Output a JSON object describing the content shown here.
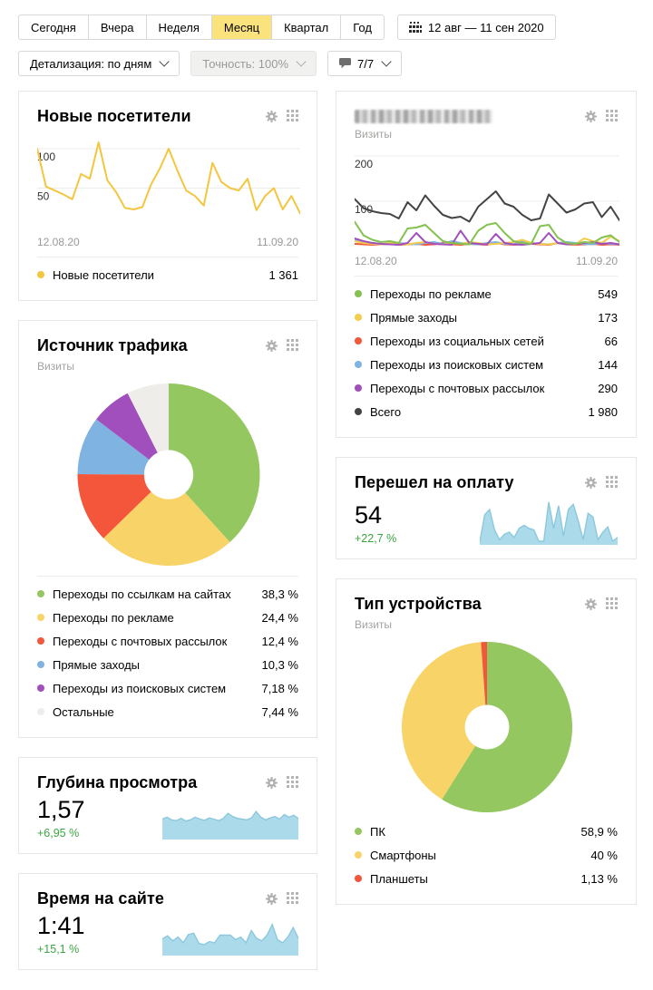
{
  "toolbar": {
    "period_tabs": [
      {
        "label": "Сегодня",
        "active": false
      },
      {
        "label": "Вчера",
        "active": false
      },
      {
        "label": "Неделя",
        "active": false
      },
      {
        "label": "Месяц",
        "active": true
      },
      {
        "label": "Квартал",
        "active": false
      },
      {
        "label": "Год",
        "active": false
      }
    ],
    "date_range": "12 авг — 11 сен 2020",
    "detail_button": "Детализация: по дням",
    "accuracy_button": "Точность: 100%",
    "comments_button": "7/7"
  },
  "colors": {
    "selected_tab_bg": "#fae27d",
    "positive_delta": "#3aa53f",
    "spark_fill": "#abdaeb",
    "spark_stroke": "#8cc8dd"
  },
  "cards": {
    "new_visitors": {
      "title": "Новые посетители",
      "legend": [
        {
          "label": "Новые посетители",
          "value": "1 361",
          "color": "#f4c63f"
        }
      ]
    },
    "site_traffic": {
      "title_blurred": true,
      "subtitle": "Визиты",
      "legend": [
        {
          "label": "Переходы по рекламе",
          "value": "549",
          "color": "#84c14f"
        },
        {
          "label": "Прямые заходы",
          "value": "173",
          "color": "#f2cd4e"
        },
        {
          "label": "Переходы из социальных сетей",
          "value": "66",
          "color": "#f4563c"
        },
        {
          "label": "Переходы из поисковых систем",
          "value": "144",
          "color": "#7fb3e2"
        },
        {
          "label": "Переходы с почтовых рассылок",
          "value": "290",
          "color": "#a14fbc"
        },
        {
          "label": "Всего",
          "value": "1 980",
          "color": "#444444"
        }
      ]
    },
    "traffic_source": {
      "title": "Источник трафика",
      "subtitle": "Визиты",
      "legend": [
        {
          "label": "Переходы по ссылкам на сайтах",
          "value": "38,3 %",
          "color": "#94c75f"
        },
        {
          "label": "Переходы по рекламе",
          "value": "24,4 %",
          "color": "#f8d468"
        },
        {
          "label": "Переходы с почтовых рассылок",
          "value": "12,4 %",
          "color": "#f4563c"
        },
        {
          "label": "Прямые заходы",
          "value": "10,3 %",
          "color": "#7fb3e2"
        },
        {
          "label": "Переходы из поисковых систем",
          "value": "7,18 %",
          "color": "#a14fbc"
        },
        {
          "label": "Остальные",
          "value": "7,44 %",
          "color": "#eeede9"
        }
      ]
    },
    "payment": {
      "title": "Перешел на оплату",
      "value": "54",
      "delta": "+22,7 %"
    },
    "depth": {
      "title": "Глубина просмотра",
      "value": "1,57",
      "delta": "+6,95 %"
    },
    "time_on_site": {
      "title": "Время на сайте",
      "value": "1:41",
      "delta": "+15,1 %"
    },
    "devices": {
      "title": "Тип устройства",
      "subtitle": "Визиты",
      "legend": [
        {
          "label": "ПК",
          "value": "58,9 %",
          "color": "#94c75f"
        },
        {
          "label": "Смартфоны",
          "value": "40 %",
          "color": "#f8d468"
        },
        {
          "label": "Планшеты",
          "value": "1,13 %",
          "color": "#f4563c"
        }
      ]
    }
  },
  "chart_data": [
    {
      "id": "new_visitors",
      "type": "line",
      "title": "Новые посетители",
      "x_labels": [
        "12.08.20",
        "11.09.20"
      ],
      "ylim": [
        0,
        115
      ],
      "yticks": [
        50,
        100
      ],
      "grid": true,
      "series": [
        {
          "name": "Новые посетители",
          "color": "#f4c63f",
          "values": [
            100,
            52,
            47,
            42,
            36,
            68,
            62,
            108,
            60,
            45,
            25,
            23,
            26,
            55,
            75,
            100,
            72,
            47,
            40,
            28,
            82,
            58,
            50,
            47,
            62,
            22,
            40,
            50,
            23,
            40,
            18
          ]
        }
      ],
      "total": "1 361"
    },
    {
      "id": "site_traffic",
      "type": "line",
      "title": "Визиты по источникам",
      "x_labels": [
        "12.08.20",
        "11.09.20"
      ],
      "ylim": [
        0,
        210
      ],
      "yticks": [
        100,
        200
      ],
      "grid": true,
      "series": [
        {
          "name": "Переходы из социальных сетей",
          "color": "#f4563c",
          "values": [
            6,
            5,
            4,
            5,
            6,
            4,
            5,
            6,
            4,
            5,
            8,
            5,
            4,
            6,
            5,
            4,
            8,
            5,
            4,
            5,
            6,
            5,
            4,
            8,
            5,
            4,
            5,
            6,
            4,
            5,
            4
          ]
        },
        {
          "name": "Переходы из поисковых систем",
          "color": "#7fb3e2",
          "values": [
            14,
            10,
            8,
            6,
            5,
            8,
            6,
            5,
            8,
            10,
            6,
            12,
            8,
            6,
            5,
            8,
            10,
            6,
            5,
            12,
            8,
            6,
            5,
            8,
            10,
            8,
            6,
            5,
            8,
            6,
            5
          ]
        },
        {
          "name": "Прямые заходы",
          "color": "#f2cd4e",
          "values": [
            12,
            8,
            6,
            5,
            8,
            6,
            5,
            8,
            10,
            6,
            5,
            8,
            6,
            10,
            8,
            5,
            6,
            8,
            10,
            15,
            8,
            6,
            5,
            8,
            6,
            5,
            18,
            12,
            8,
            22,
            12
          ]
        },
        {
          "name": "Переходы с почтовых рассылок",
          "color": "#a14fbc",
          "values": [
            18,
            12,
            8,
            6,
            5,
            4,
            8,
            30,
            10,
            6,
            5,
            4,
            35,
            8,
            6,
            5,
            28,
            8,
            5,
            4,
            6,
            8,
            30,
            8,
            5,
            6,
            8,
            10,
            6,
            8,
            5
          ]
        },
        {
          "name": "Переходы по рекламе",
          "color": "#84c14f",
          "values": [
            55,
            25,
            15,
            10,
            12,
            8,
            40,
            42,
            48,
            30,
            12,
            8,
            6,
            5,
            35,
            48,
            52,
            30,
            12,
            8,
            6,
            45,
            48,
            20,
            8,
            6,
            10,
            8,
            20,
            25,
            10
          ]
        },
        {
          "name": "Всего",
          "color": "#444444",
          "values": [
            105,
            85,
            78,
            74,
            72,
            62,
            98,
            80,
            113,
            90,
            70,
            63,
            66,
            55,
            88,
            105,
            122,
            95,
            88,
            70,
            58,
            62,
            115,
            95,
            75,
            82,
            95,
            98,
            65,
            88,
            58
          ]
        }
      ],
      "totals": {
        "Переходы по рекламе": 549,
        "Прямые заходы": 173,
        "Переходы из социальных сетей": 66,
        "Переходы из поисковых систем": 144,
        "Переходы с почтовых рассылок": 290,
        "Всего": 1980
      }
    },
    {
      "id": "traffic_source",
      "type": "pie",
      "title": "Источник трафика",
      "donut": 0.27,
      "legend_position": "bottom",
      "slices": [
        {
          "label": "Переходы по ссылкам на сайтах",
          "pct": 38.3,
          "color": "#94c75f"
        },
        {
          "label": "Переходы по рекламе",
          "pct": 24.4,
          "color": "#f8d468"
        },
        {
          "label": "Переходы с почтовых рассылок",
          "pct": 12.4,
          "color": "#f4563c"
        },
        {
          "label": "Прямые заходы",
          "pct": 10.3,
          "color": "#7fb3e2"
        },
        {
          "label": "Переходы из поисковых систем",
          "pct": 7.18,
          "color": "#a14fbc"
        },
        {
          "label": "Остальные",
          "pct": 7.44,
          "color": "#eeede9"
        }
      ]
    },
    {
      "id": "devices",
      "type": "pie",
      "title": "Тип устройства",
      "donut": 0.26,
      "legend_position": "bottom",
      "slices": [
        {
          "label": "ПК",
          "pct": 58.9,
          "color": "#94c75f"
        },
        {
          "label": "Смартфоны",
          "pct": 40,
          "color": "#f8d468"
        },
        {
          "label": "Планшеты",
          "pct": 1.13,
          "color": "#f4563c"
        }
      ]
    },
    {
      "id": "payment",
      "type": "area",
      "title": "Перешел на оплату",
      "ylim": [
        0,
        60
      ],
      "fill": "#abdaeb",
      "stroke": "#8cc8dd",
      "values": [
        2,
        38,
        45,
        18,
        5,
        12,
        15,
        8,
        20,
        24,
        20,
        18,
        3,
        3,
        55,
        20,
        50,
        10,
        45,
        52,
        30,
        5,
        40,
        35,
        5,
        15,
        22,
        3,
        8
      ]
    },
    {
      "id": "depth",
      "type": "area",
      "title": "Глубина просмотра",
      "ylim": [
        0,
        100
      ],
      "fill": "#abdaeb",
      "stroke": "#8cc8dd",
      "values": [
        50,
        55,
        48,
        46,
        52,
        45,
        48,
        55,
        50,
        47,
        53,
        50,
        46,
        52,
        65,
        57,
        52,
        50,
        48,
        53,
        70,
        55,
        48,
        53,
        57,
        50,
        62,
        55,
        60,
        52
      ]
    },
    {
      "id": "time_on_site",
      "type": "area",
      "title": "Время на сайте",
      "ylim": [
        0,
        100
      ],
      "fill": "#abdaeb",
      "stroke": "#8cc8dd",
      "values": [
        40,
        48,
        35,
        45,
        30,
        52,
        55,
        28,
        25,
        33,
        30,
        50,
        50,
        50,
        38,
        45,
        30,
        62,
        42,
        35,
        50,
        78,
        38,
        30,
        45,
        70,
        42
      ]
    }
  ]
}
